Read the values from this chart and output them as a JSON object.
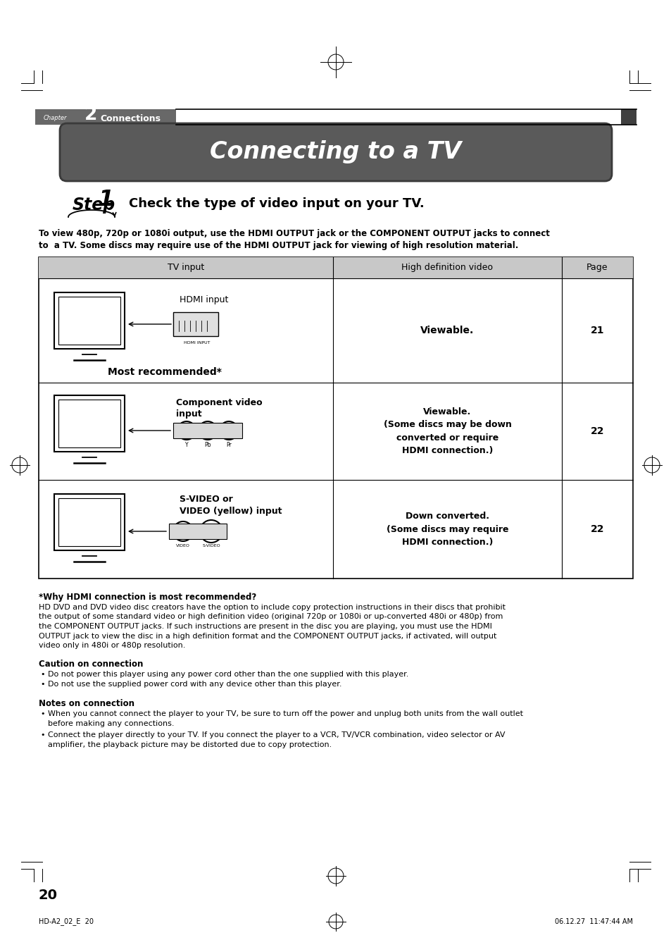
{
  "title": "Connecting to a TV",
  "chapter_label": "Chapter",
  "chapter_num": "2",
  "chapter_text": "Connections",
  "step_text": "Check the type of video input on your TV.",
  "intro_line1": "To view 480p, 720p or 1080i output, use the HDMI OUTPUT jack or the COMPONENT OUTPUT jacks to connect",
  "intro_line2": "to  a TV. Some discs may require use of the HDMI OUTPUT jack for viewing of high resolution material.",
  "table_headers": [
    "TV input",
    "High definition video",
    "Page"
  ],
  "why_hdmi_title": "*Why HDMI connection is most recommended?",
  "why_hdmi_lines": [
    "HD DVD and DVD video disc creators have the option to include copy protection instructions in their discs that prohibit",
    "the output of some standard video or high definition video (original 720p or 1080i or up-converted 480i or 480p) from",
    "the COMPONENT OUTPUT jacks. If such instructions are present in the disc you are playing, you must use the HDMI",
    "OUTPUT jack to view the disc in a high definition format and the COMPONENT OUTPUT jacks, if activated, will output",
    "video only in 480i or 480p resolution."
  ],
  "caution_title": "Caution on connection",
  "caution_bullets": [
    "Do not power this player using any power cord other than the one supplied with this player.",
    "Do not use the supplied power cord with any device other than this player."
  ],
  "notes_title": "Notes on connection",
  "notes_bullet1_lines": [
    "When you cannot connect the player to your TV, be sure to turn off the power and unplug both units from the wall outlet",
    "before making any connections."
  ],
  "notes_bullet2_lines": [
    "Connect the player directly to your TV. If you connect the player to a VCR, TV/VCR combination, video selector or AV",
    "amplifier, the playback picture may be distorted due to copy protection."
  ],
  "page_number": "20",
  "footer_left": "HD-A2_02_E  20",
  "footer_right": "06.12.27  11:47:44 AM",
  "bg_color": "#ffffff",
  "header_bar_color": "#686868",
  "title_bar_color": "#606060",
  "table_header_color": "#c8c8c8",
  "title_text_color": "#ffffff"
}
